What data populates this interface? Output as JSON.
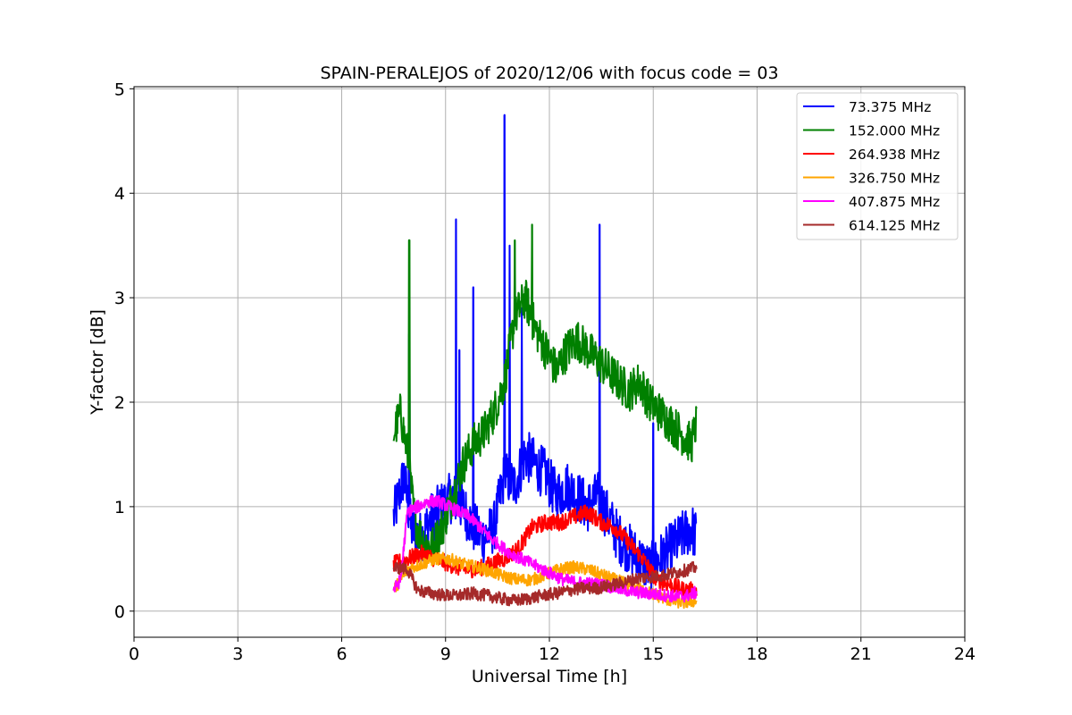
{
  "chart_data": {
    "type": "line",
    "title": "SPAIN-PERALEJOS of 2020/12/06 with focus code = 03",
    "xlabel": "Universal Time [h]",
    "ylabel": "Y-factor [dB]",
    "xlim": [
      0,
      24
    ],
    "ylim": [
      -0.25,
      5.02
    ],
    "xticks": [
      0,
      3,
      6,
      9,
      12,
      15,
      18,
      21,
      24
    ],
    "yticks": [
      0,
      1,
      2,
      3,
      4,
      5
    ],
    "grid": true,
    "legend_position": "top-right",
    "x_range_observed": [
      7.5,
      16.25
    ],
    "series": [
      {
        "name": " 73.375 MHz",
        "color": "#0000ff",
        "x": [
          7.5,
          7.8,
          8.0,
          8.3,
          8.6,
          8.9,
          9.2,
          9.5,
          9.8,
          10.1,
          10.4,
          10.7,
          11.0,
          11.3,
          11.6,
          11.9,
          12.2,
          12.5,
          12.8,
          13.1,
          13.4,
          13.7,
          14.0,
          14.3,
          14.6,
          14.9,
          15.2,
          15.5,
          15.8,
          16.1,
          16.25
        ],
        "values": [
          0.9,
          1.3,
          0.8,
          0.7,
          0.9,
          1.0,
          1.1,
          1.0,
          0.8,
          0.7,
          0.8,
          1.3,
          1.2,
          1.5,
          1.4,
          1.3,
          1.1,
          1.2,
          1.1,
          1.0,
          1.1,
          0.9,
          0.7,
          0.6,
          0.5,
          0.4,
          0.5,
          0.6,
          0.7,
          0.8,
          0.7
        ],
        "noise": 0.25,
        "spikes": [
          [
            7.95,
            2.65
          ],
          [
            9.3,
            3.75
          ],
          [
            9.4,
            2.5
          ],
          [
            9.8,
            3.1
          ],
          [
            10.7,
            4.75
          ],
          [
            10.85,
            3.5
          ],
          [
            11.2,
            2.9
          ],
          [
            13.45,
            3.7
          ],
          [
            15.0,
            1.8
          ]
        ]
      },
      {
        "name": "152.000 MHz",
        "color": "#008000",
        "x": [
          7.5,
          7.7,
          7.9,
          8.1,
          8.3,
          8.6,
          8.9,
          9.2,
          9.5,
          9.8,
          10.1,
          10.4,
          10.7,
          11.0,
          11.3,
          11.6,
          11.9,
          12.2,
          12.5,
          12.8,
          13.1,
          13.4,
          13.7,
          14.0,
          14.3,
          14.6,
          14.9,
          15.2,
          15.5,
          15.8,
          16.1,
          16.25
        ],
        "values": [
          1.7,
          1.9,
          1.5,
          0.9,
          0.7,
          0.6,
          0.8,
          1.1,
          1.4,
          1.6,
          1.7,
          1.9,
          2.2,
          2.8,
          3.0,
          2.7,
          2.5,
          2.3,
          2.5,
          2.6,
          2.5,
          2.4,
          2.3,
          2.2,
          2.1,
          2.2,
          2.0,
          1.9,
          1.8,
          1.7,
          1.6,
          1.8
        ],
        "noise": 0.2,
        "spikes": [
          [
            7.95,
            3.55
          ],
          [
            11.0,
            3.55
          ],
          [
            11.5,
            3.7
          ]
        ]
      },
      {
        "name": "264.938 MHz",
        "color": "#ff0000",
        "x": [
          7.5,
          7.9,
          8.3,
          8.7,
          9.1,
          9.5,
          9.9,
          10.3,
          10.7,
          11.1,
          11.5,
          11.9,
          12.3,
          12.7,
          13.1,
          13.5,
          13.9,
          14.3,
          14.7,
          15.1,
          15.5,
          15.9,
          16.25
        ],
        "values": [
          0.45,
          0.5,
          0.55,
          0.5,
          0.45,
          0.4,
          0.4,
          0.45,
          0.5,
          0.6,
          0.8,
          0.85,
          0.85,
          0.9,
          0.95,
          0.85,
          0.8,
          0.65,
          0.5,
          0.3,
          0.25,
          0.2,
          0.2
        ],
        "noise": 0.08,
        "spikes": []
      },
      {
        "name": "326.750 MHz",
        "color": "#ffa500",
        "x": [
          7.5,
          7.9,
          8.3,
          8.7,
          9.1,
          9.5,
          9.9,
          10.3,
          10.7,
          11.1,
          11.5,
          11.9,
          12.3,
          12.7,
          13.1,
          13.5,
          13.9,
          14.3,
          14.7,
          15.1,
          15.5,
          15.9,
          16.25
        ],
        "values": [
          0.2,
          0.4,
          0.45,
          0.5,
          0.5,
          0.45,
          0.42,
          0.38,
          0.33,
          0.3,
          0.3,
          0.35,
          0.4,
          0.42,
          0.4,
          0.35,
          0.3,
          0.25,
          0.2,
          0.15,
          0.1,
          0.08,
          0.1
        ],
        "noise": 0.06,
        "spikes": []
      },
      {
        "name": "407.875 MHz",
        "color": "#ff00ff",
        "x": [
          7.5,
          7.7,
          7.9,
          8.2,
          8.5,
          8.8,
          9.1,
          9.4,
          9.7,
          10.0,
          10.3,
          10.6,
          10.9,
          11.2,
          11.5,
          11.8,
          12.1,
          12.4,
          12.7,
          13.0,
          13.3,
          13.6,
          13.9,
          14.2,
          14.5,
          14.8,
          15.1,
          15.4,
          15.7,
          16.0,
          16.25
        ],
        "values": [
          0.2,
          0.3,
          0.95,
          1.0,
          1.05,
          1.05,
          1.0,
          0.95,
          0.9,
          0.8,
          0.7,
          0.62,
          0.55,
          0.5,
          0.45,
          0.4,
          0.35,
          0.3,
          0.28,
          0.27,
          0.26,
          0.25,
          0.22,
          0.2,
          0.18,
          0.17,
          0.16,
          0.15,
          0.14,
          0.15,
          0.18
        ],
        "noise": 0.06,
        "spikes": []
      },
      {
        "name": "614.125 MHz",
        "color": "#a52a2a",
        "x": [
          7.5,
          7.9,
          8.2,
          8.6,
          9.0,
          9.4,
          9.8,
          10.2,
          10.6,
          11.0,
          11.4,
          11.8,
          12.2,
          12.6,
          13.0,
          13.4,
          13.8,
          14.2,
          14.6,
          15.0,
          15.4,
          15.8,
          16.25
        ],
        "values": [
          0.42,
          0.4,
          0.2,
          0.17,
          0.15,
          0.15,
          0.17,
          0.15,
          0.12,
          0.1,
          0.12,
          0.15,
          0.17,
          0.2,
          0.22,
          0.22,
          0.25,
          0.28,
          0.32,
          0.33,
          0.35,
          0.38,
          0.42
        ],
        "noise": 0.06,
        "spikes": []
      }
    ]
  }
}
